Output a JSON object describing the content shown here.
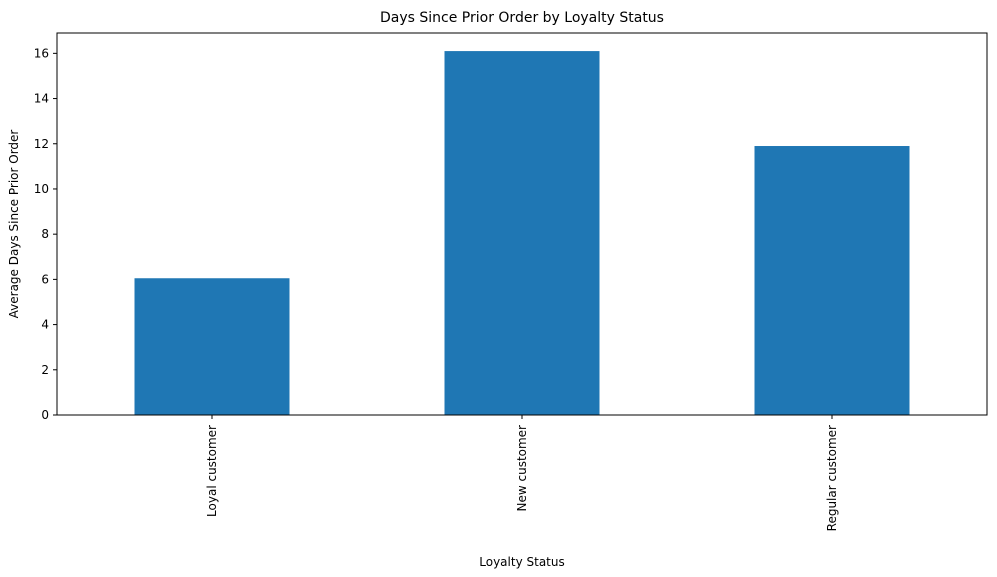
{
  "chart_data": {
    "type": "bar",
    "title": "Days Since Prior Order by Loyalty Status",
    "xlabel": "Loyalty Status",
    "ylabel": "Average Days Since Prior Order",
    "categories": [
      "Loyal customer",
      "New customer",
      "Regular customer"
    ],
    "values": [
      6.05,
      16.1,
      11.9
    ],
    "ylim": [
      0,
      16.9
    ],
    "yticks": [
      0,
      2,
      4,
      6,
      8,
      10,
      12,
      14,
      16
    ],
    "bar_color": "#1f77b4",
    "grid": false,
    "legend": false
  }
}
